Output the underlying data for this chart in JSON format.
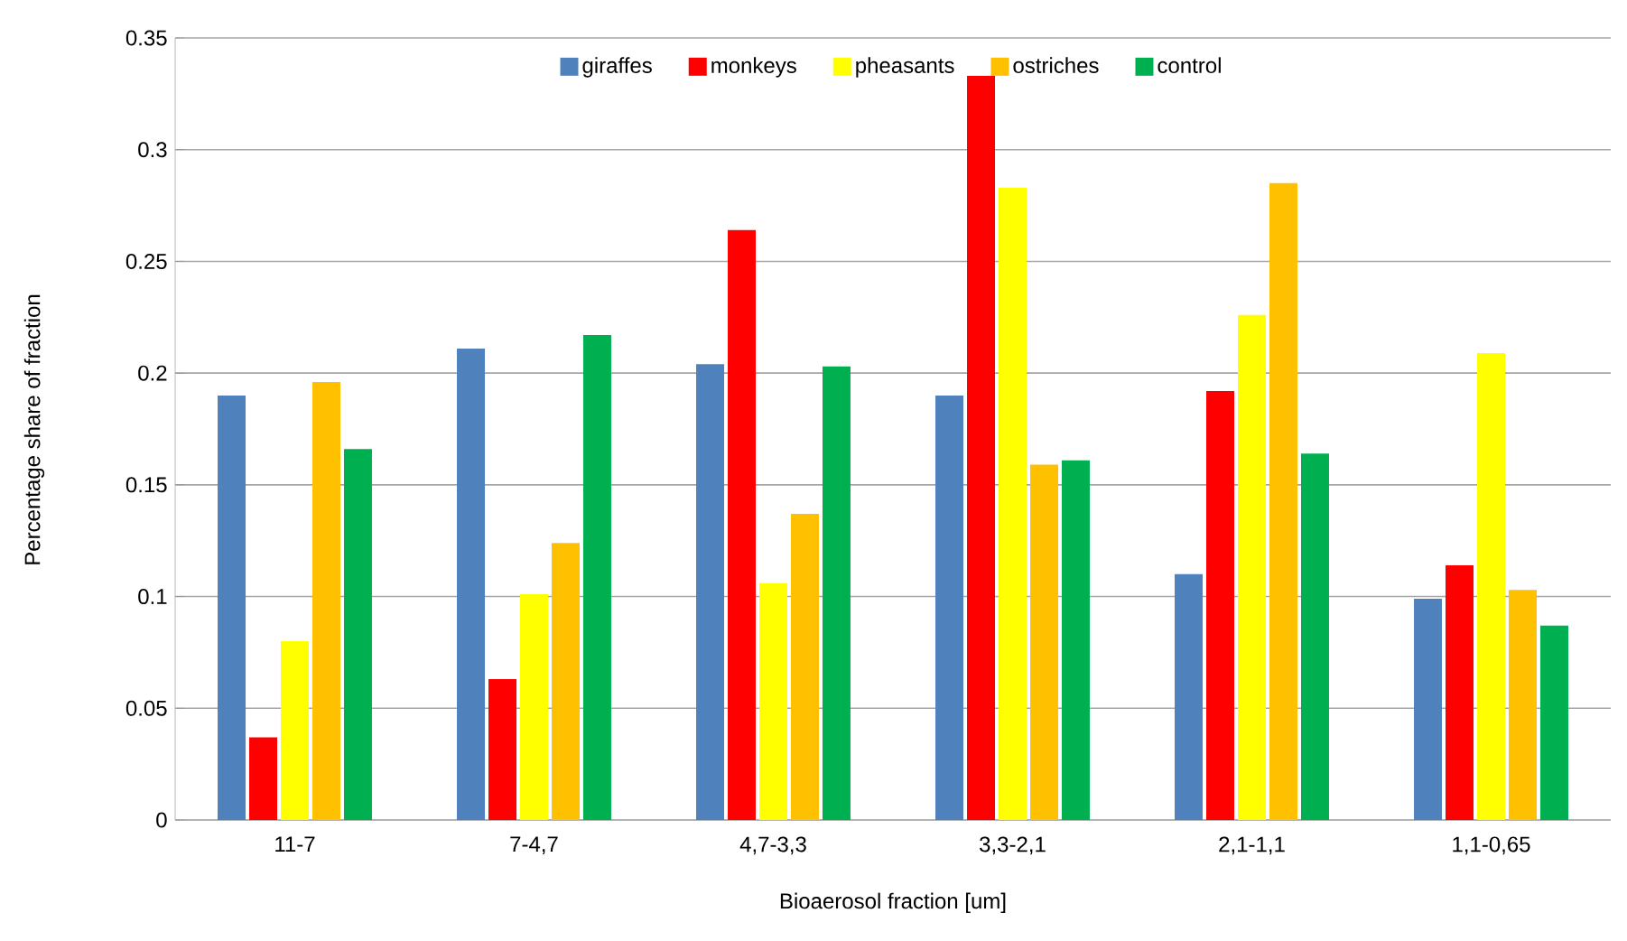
{
  "chart_data": {
    "type": "bar",
    "xlabel": "Bioaerosol fraction [um]",
    "ylabel": "Percentage share of fraction",
    "categories": [
      "11-7",
      "7-4,7",
      "4,7-3,3",
      "3,3-2,1",
      "2,1-1,1",
      "1,1-0,65"
    ],
    "series": [
      {
        "name": "giraffes",
        "color": "#4f81bd",
        "values": [
          0.19,
          0.211,
          0.204,
          0.19,
          0.11,
          0.099
        ]
      },
      {
        "name": "monkeys",
        "color": "#ff0000",
        "values": [
          0.037,
          0.063,
          0.264,
          0.333,
          0.192,
          0.114
        ]
      },
      {
        "name": "pheasants",
        "color": "#ffff00",
        "values": [
          0.08,
          0.101,
          0.106,
          0.283,
          0.226,
          0.209
        ]
      },
      {
        "name": "ostriches",
        "color": "#ffc000",
        "values": [
          0.196,
          0.124,
          0.137,
          0.159,
          0.285,
          0.103
        ]
      },
      {
        "name": "control",
        "color": "#00b050",
        "values": [
          0.166,
          0.217,
          0.203,
          0.161,
          0.164,
          0.087
        ]
      }
    ],
    "ylim": [
      0,
      0.35
    ],
    "yticks": [
      0,
      0.05,
      0.1,
      0.15,
      0.2,
      0.25,
      0.3,
      0.35
    ],
    "grid": "y",
    "legend": "top"
  }
}
